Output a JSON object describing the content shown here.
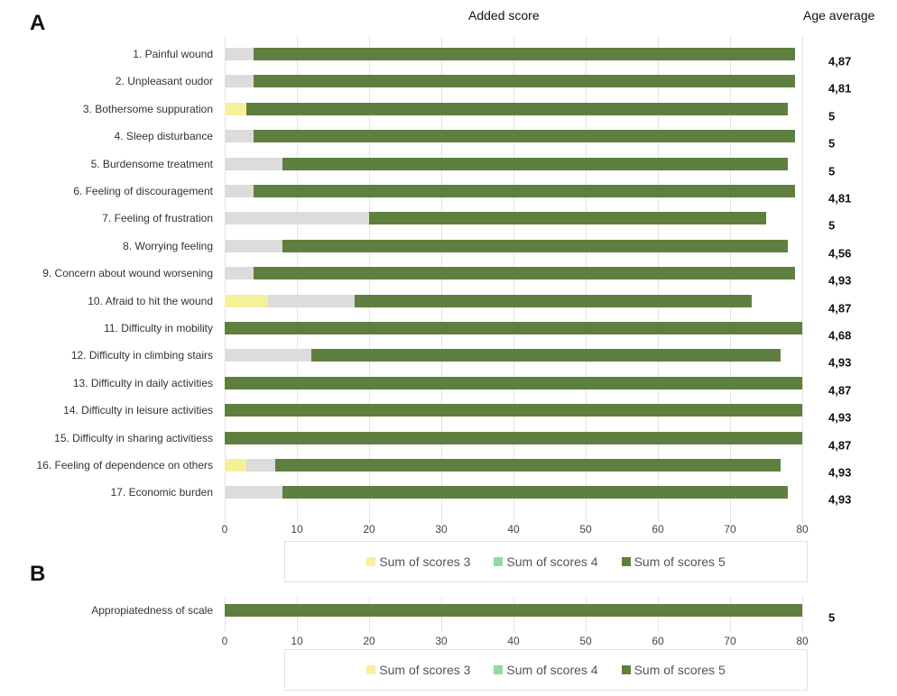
{
  "chart_data": [
    {
      "type": "bar",
      "orientation": "horizontal",
      "stacked": true,
      "panel": "A",
      "header_center": "Added score",
      "header_right": "Age average",
      "categories": [
        "1. Painful wound",
        "2. Unpleasant oudor",
        "3. Bothersome suppuration",
        "4. Sleep disturbance",
        "5. Burdensome treatment",
        "6. Feeling of discouragement",
        "7. Feeling of frustration",
        "8. Worrying feeling",
        "9. Concern about wound worsening",
        "10. Afraid to hit the wound",
        "11. Difficulty in mobility",
        "12. Difficulty in climbing stairs",
        "13. Difficulty in daily activities",
        "14. Difficulty in leisure activities",
        "15. Difficulty in sharing activitiess",
        "16. Feeling of dependence on others",
        "17. Economic burden"
      ],
      "series": [
        {
          "name": "Sum of scores 3",
          "color": "#f5f09a",
          "bar_color": "#f5f09a",
          "values": [
            0,
            0,
            3,
            0,
            0,
            0,
            0,
            0,
            0,
            6,
            0,
            0,
            0,
            0,
            0,
            3,
            0
          ]
        },
        {
          "name": "Sum of scores 4",
          "color": "#98d99a",
          "bar_color": "#dcdcdc",
          "values": [
            4,
            4,
            0,
            4,
            8,
            4,
            20,
            8,
            4,
            12,
            0,
            12,
            0,
            0,
            0,
            4,
            8
          ]
        },
        {
          "name": "Sum of scores 5",
          "color": "#5f7f3f",
          "bar_color": "#5f7f3f",
          "values": [
            75,
            75,
            75,
            75,
            70,
            75,
            55,
            70,
            75,
            55,
            80,
            65,
            80,
            80,
            80,
            70,
            70
          ]
        }
      ],
      "age_average": [
        "4,87",
        "4,81",
        "5",
        "5",
        "5",
        "4,81",
        "5",
        "4,56",
        "4,93",
        "4,87",
        "4,68",
        "4,93",
        "4,87",
        "4,93",
        "4,87",
        "4,93",
        "4,93"
      ],
      "xlim": [
        0,
        80
      ],
      "xticks": [
        "0",
        "10",
        "20",
        "30",
        "40",
        "50",
        "60",
        "70",
        "80"
      ],
      "legend": "bottom",
      "grid": true
    },
    {
      "type": "bar",
      "orientation": "horizontal",
      "stacked": true,
      "panel": "B",
      "categories": [
        "Appropiatedness of scale"
      ],
      "series": [
        {
          "name": "Sum of scores 3",
          "color": "#f5f09a",
          "bar_color": "#f5f09a",
          "values": [
            0
          ]
        },
        {
          "name": "Sum of scores 4",
          "color": "#98d99a",
          "bar_color": "#dcdcdc",
          "values": [
            0
          ]
        },
        {
          "name": "Sum of scores 5",
          "color": "#5f7f3f",
          "bar_color": "#5f7f3f",
          "values": [
            80
          ]
        }
      ],
      "age_average": [
        "5"
      ],
      "xlim": [
        0,
        80
      ],
      "xticks": [
        "0",
        "10",
        "20",
        "30",
        "40",
        "50",
        "60",
        "70",
        "80"
      ],
      "legend": "bottom",
      "grid": true
    }
  ]
}
